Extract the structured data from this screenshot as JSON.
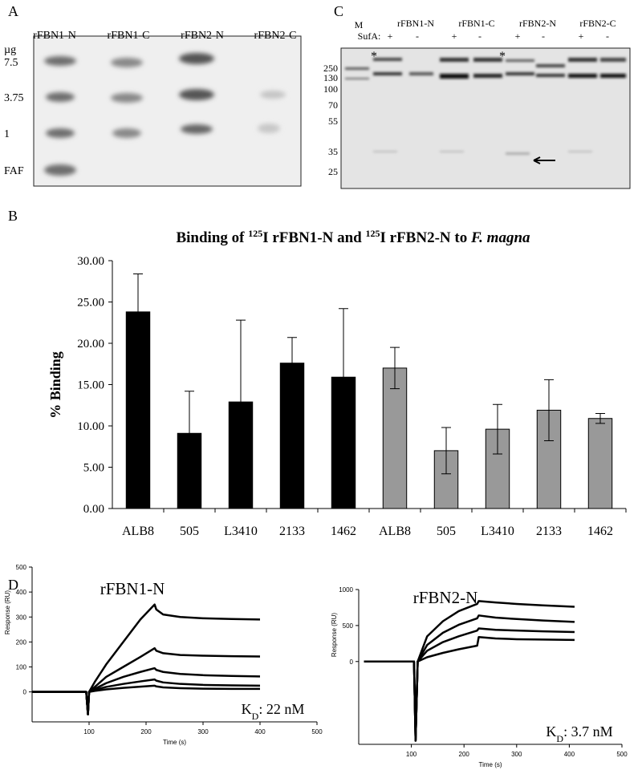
{
  "panel_a": {
    "label": "A",
    "columns": [
      "rFBN1-N",
      "rFBN1-C",
      "rFBN2-N",
      "rFBN2-C"
    ],
    "unit": "µg",
    "rows": [
      "7.5",
      "3.75",
      "1",
      "FAF"
    ]
  },
  "panel_c": {
    "label": "C",
    "marker_label": "M",
    "treatment_label": "SufA:",
    "columns": [
      "rFBN1-N",
      "rFBN1-C",
      "rFBN2-N",
      "rFBN2-C"
    ],
    "signs": [
      "+",
      "-",
      "+",
      "-",
      "+",
      "-",
      "+",
      "-"
    ],
    "markers": [
      "250",
      "130",
      "100",
      "70",
      "55",
      "35",
      "25"
    ],
    "annotations": [
      "*",
      "*"
    ]
  },
  "chart_data": [
    {
      "type": "bar",
      "panel_label": "B",
      "title_parts": [
        "Binding of ",
        "125",
        "I rFBN1-N and ",
        "125",
        "I rFBN2-N to ",
        "F. magna"
      ],
      "ylabel": "% Binding",
      "categories": [
        "ALB8",
        "505",
        "L3410",
        "2133",
        "1462",
        "ALB8",
        "505",
        "L3410",
        "2133",
        "1462"
      ],
      "series": [
        {
          "color": "#000000",
          "values": [
            23.8,
            9.1,
            12.9,
            17.6,
            15.9,
            null,
            null,
            null,
            null,
            null
          ],
          "errors": [
            4.6,
            5.1,
            9.9,
            3.1,
            8.3,
            null,
            null,
            null,
            null,
            null
          ]
        },
        {
          "color": "#999999",
          "values": [
            null,
            null,
            null,
            null,
            null,
            17.0,
            7.0,
            9.6,
            11.9,
            10.9
          ],
          "errors": [
            null,
            null,
            null,
            null,
            null,
            2.5,
            2.8,
            3.0,
            3.7,
            0.6
          ]
        }
      ],
      "ylim": [
        0,
        30
      ],
      "yticks": [
        {
          "value": 0,
          "label": "0.00"
        },
        {
          "value": 5,
          "label": "5.00"
        },
        {
          "value": 10,
          "label": "10.00"
        },
        {
          "value": 15,
          "label": "15.00"
        },
        {
          "value": 20,
          "label": "20.00"
        },
        {
          "value": 25,
          "label": "25.00"
        },
        {
          "value": 30,
          "label": "30.00"
        }
      ]
    },
    {
      "type": "line",
      "panel_label": "D",
      "title": "rFBN1-N",
      "annotation_parts": [
        "K",
        "D",
        ": 22 nM"
      ],
      "xlabel": "Time (s)",
      "ylabel": "Response (RU)",
      "x": [
        0,
        95,
        98,
        100,
        110,
        130,
        160,
        190,
        215,
        218,
        230,
        260,
        300,
        350,
        400
      ],
      "series": [
        {
          "color": "#000000",
          "values": [
            0,
            0,
            -90,
            0,
            40,
            110,
            200,
            290,
            350,
            330,
            310,
            300,
            295,
            292,
            290
          ]
        },
        {
          "color": "#000000",
          "values": [
            0,
            0,
            -90,
            0,
            20,
            60,
            100,
            140,
            175,
            165,
            155,
            148,
            145,
            143,
            142
          ]
        },
        {
          "color": "#000000",
          "values": [
            0,
            0,
            -90,
            0,
            12,
            35,
            60,
            80,
            95,
            88,
            80,
            72,
            67,
            64,
            62
          ]
        },
        {
          "color": "#000000",
          "values": [
            0,
            0,
            -90,
            0,
            8,
            20,
            32,
            42,
            50,
            45,
            38,
            32,
            28,
            26,
            25
          ]
        },
        {
          "color": "#000000",
          "values": [
            0,
            0,
            -90,
            0,
            4,
            10,
            16,
            21,
            25,
            22,
            18,
            15,
            13,
            12,
            12
          ]
        }
      ],
      "xlim": [
        0,
        500
      ],
      "xticks": [
        100,
        200,
        300,
        400,
        500
      ],
      "ylim": [
        -120,
        500
      ],
      "yticks": [
        0,
        100,
        200,
        300,
        400,
        500
      ]
    },
    {
      "type": "line",
      "title": "rFBN2-N",
      "annotation_parts": [
        "K",
        "D",
        ": 3.7 nM"
      ],
      "xlabel": "Time (s)",
      "ylabel": "Response (RU)",
      "x": [
        10,
        100,
        105,
        108,
        112,
        130,
        160,
        190,
        225,
        228,
        260,
        300,
        350,
        410
      ],
      "series": [
        {
          "color": "#000000",
          "values": [
            0,
            0,
            0,
            -1100,
            0,
            350,
            560,
            700,
            800,
            840,
            820,
            800,
            780,
            760
          ]
        },
        {
          "color": "#000000",
          "values": [
            0,
            0,
            0,
            -1100,
            0,
            230,
            400,
            510,
            600,
            640,
            610,
            590,
            570,
            550
          ]
        },
        {
          "color": "#000000",
          "values": [
            0,
            0,
            0,
            -1100,
            0,
            150,
            270,
            350,
            430,
            460,
            440,
            430,
            420,
            410
          ]
        },
        {
          "color": "#000000",
          "values": [
            0,
            0,
            0,
            -1100,
            0,
            60,
            120,
            170,
            220,
            340,
            320,
            310,
            305,
            300
          ]
        }
      ],
      "xlim": [
        0,
        500
      ],
      "xticks": [
        100,
        200,
        300,
        400,
        500
      ],
      "ylim": [
        -1150,
        1000
      ],
      "yticks": [
        0,
        500,
        1000
      ]
    }
  ]
}
